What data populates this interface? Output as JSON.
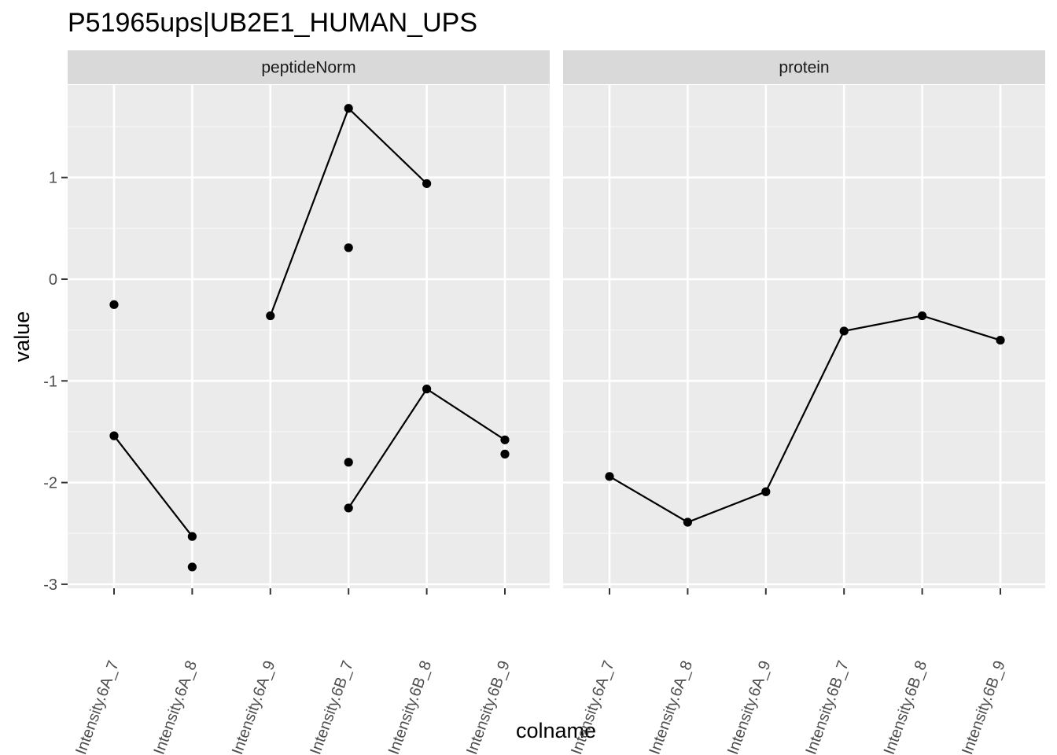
{
  "chart_data": {
    "type": "line",
    "title": "P51965ups|UB2E1_HUMAN_UPS",
    "xlabel": "colname",
    "ylabel": "value",
    "ylim": [
      -3.05,
      1.9
    ],
    "yticks": [
      1,
      0,
      -1,
      -2,
      -3
    ],
    "ytick_labels": [
      "1",
      "0",
      "-1",
      "-2",
      "-3"
    ],
    "categories": [
      "Intensity.6A_7",
      "Intensity.6A_8",
      "Intensity.6A_9",
      "Intensity.6B_7",
      "Intensity.6B_8",
      "Intensity.6B_9"
    ],
    "grid": true,
    "facets": [
      {
        "label": "peptideNorm",
        "lines": [
          [
            [
              "Intensity.6A_9",
              -0.36
            ],
            [
              "Intensity.6B_7",
              1.68
            ],
            [
              "Intensity.6B_8",
              0.94
            ]
          ],
          [
            [
              "Intensity.6A_7",
              -1.54
            ],
            [
              "Intensity.6A_8",
              -2.53
            ]
          ],
          [
            [
              "Intensity.6B_7",
              -2.25
            ],
            [
              "Intensity.6B_8",
              -1.08
            ],
            [
              "Intensity.6B_9",
              -1.58
            ]
          ]
        ],
        "points": [
          [
            "Intensity.6A_7",
            -0.25
          ],
          [
            "Intensity.6A_7",
            -1.54
          ],
          [
            "Intensity.6A_8",
            -2.53
          ],
          [
            "Intensity.6A_8",
            -2.83
          ],
          [
            "Intensity.6A_9",
            -0.36
          ],
          [
            "Intensity.6B_7",
            1.68
          ],
          [
            "Intensity.6B_7",
            0.31
          ],
          [
            "Intensity.6B_7",
            -1.8
          ],
          [
            "Intensity.6B_7",
            -2.25
          ],
          [
            "Intensity.6B_8",
            0.94
          ],
          [
            "Intensity.6B_8",
            -1.08
          ],
          [
            "Intensity.6B_9",
            -1.58
          ],
          [
            "Intensity.6B_9",
            -1.72
          ]
        ]
      },
      {
        "label": "protein",
        "lines": [
          [
            [
              "Intensity.6A_7",
              -1.94
            ],
            [
              "Intensity.6A_8",
              -2.39
            ],
            [
              "Intensity.6A_9",
              -2.09
            ],
            [
              "Intensity.6B_7",
              -0.51
            ],
            [
              "Intensity.6B_8",
              -0.36
            ],
            [
              "Intensity.6B_9",
              -0.6
            ]
          ]
        ],
        "points": [
          [
            "Intensity.6A_7",
            -1.94
          ],
          [
            "Intensity.6A_8",
            -2.39
          ],
          [
            "Intensity.6A_9",
            -2.09
          ],
          [
            "Intensity.6B_7",
            -0.51
          ],
          [
            "Intensity.6B_8",
            -0.36
          ],
          [
            "Intensity.6B_9",
            -0.6
          ]
        ]
      }
    ]
  },
  "colors": {
    "panel_background": "#ebebeb",
    "strip_background": "#d9d9d9",
    "grid_major": "#ffffff",
    "grid_minor": "#f5f5f5",
    "mark": "#000000",
    "tick_text": "#4d4d4d"
  }
}
